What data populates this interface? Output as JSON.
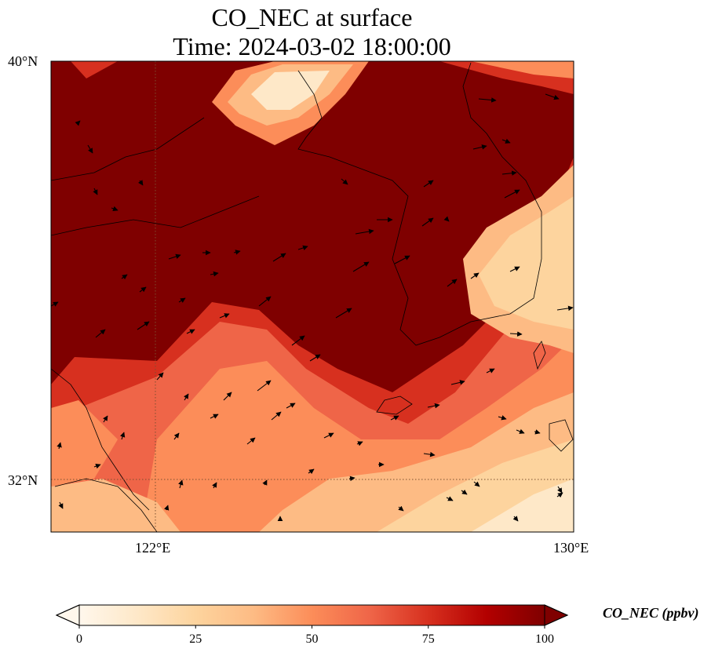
{
  "title": {
    "line1": "CO_NEC at surface",
    "line2": "Time: 2024-03-02 18:00:00"
  },
  "map": {
    "lat_range": [
      31,
      40
    ],
    "lon_range": [
      120,
      130
    ],
    "lat_ticks": [
      {
        "value": 40,
        "label": "40°N"
      },
      {
        "value": 32,
        "label": "32°N"
      }
    ],
    "lon_ticks": [
      {
        "value": 122,
        "label": "122°E"
      },
      {
        "value": 130,
        "label": "130°E"
      }
    ],
    "gridlines": "dotted",
    "vector_field": "wind arrows"
  },
  "colorbar": {
    "label": "CO_NEC (ppbv)",
    "min": 0,
    "max": 100,
    "extend": "both",
    "colormap": "OrRd",
    "ticks": [
      {
        "value": 0,
        "label": "0"
      },
      {
        "value": 25,
        "label": "25"
      },
      {
        "value": 50,
        "label": "50"
      },
      {
        "value": 75,
        "label": "75"
      },
      {
        "value": 100,
        "label": "100"
      }
    ],
    "colors": [
      "#fff7ec",
      "#fee8c8",
      "#fdd49e",
      "#fdbb84",
      "#fc8d59",
      "#ef6548",
      "#d7301f",
      "#b30000",
      "#7f0000"
    ]
  }
}
